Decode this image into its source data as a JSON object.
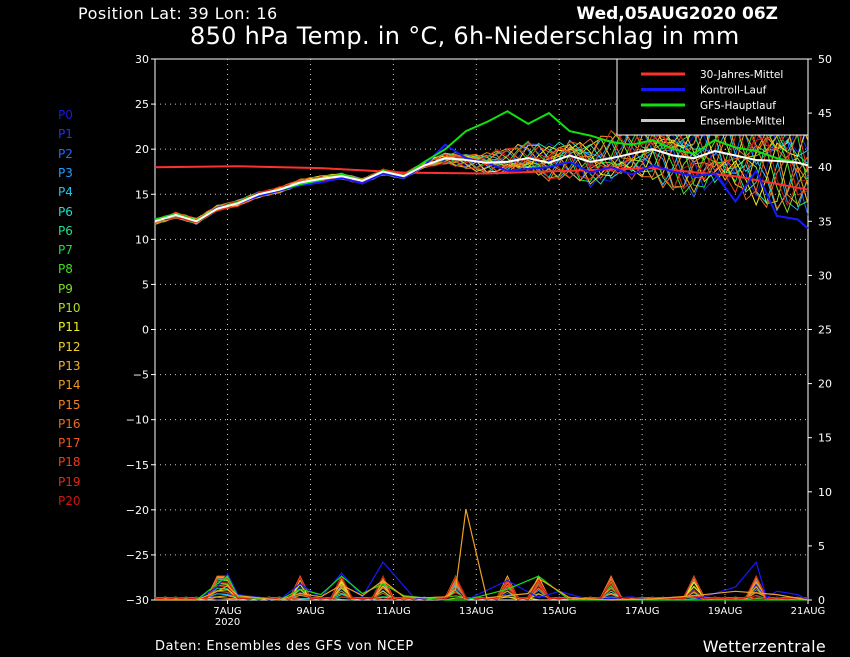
{
  "header": {
    "position": "Position   Lat: 39 Lon: 16",
    "run_time": "Wed,05AUG2020 06Z",
    "title": "850 hPa Temp. in °C, 6h-Niederschlag in mm"
  },
  "footer": {
    "source": "Daten: Ensembles des GFS von NCEP",
    "brand": "Wetterzentrale"
  },
  "members": [
    {
      "label": "P0",
      "color": "#1a1ad8"
    },
    {
      "label": "P1",
      "color": "#2030ff"
    },
    {
      "label": "P2",
      "color": "#1f6cff"
    },
    {
      "label": "P3",
      "color": "#1ea0ff"
    },
    {
      "label": "P4",
      "color": "#1ec8f0"
    },
    {
      "label": "P6",
      "color": "#19e0c8"
    },
    {
      "label": "P6",
      "color": "#1de08a"
    },
    {
      "label": "P7",
      "color": "#1de040"
    },
    {
      "label": "P8",
      "color": "#40e020"
    },
    {
      "label": "P9",
      "color": "#7ae020"
    },
    {
      "label": "P10",
      "color": "#b0e020"
    },
    {
      "label": "P11",
      "color": "#f0f020"
    },
    {
      "label": "P12",
      "color": "#f0d020"
    },
    {
      "label": "P13",
      "color": "#f0b020"
    },
    {
      "label": "P14",
      "color": "#f09820"
    },
    {
      "label": "P15",
      "color": "#f08020"
    },
    {
      "label": "P16",
      "color": "#f06a20"
    },
    {
      "label": "P17",
      "color": "#f05420"
    },
    {
      "label": "P18",
      "color": "#f03c20"
    },
    {
      "label": "P19",
      "color": "#e02818"
    },
    {
      "label": "P20",
      "color": "#c81810"
    }
  ],
  "chart_data": {
    "type": "line",
    "title": "850 hPa Temp. in °C, 6h-Niederschlag in mm",
    "x_axis": {
      "start": "2020-08-05 06Z",
      "end": "2020-08-21 00Z",
      "step": "6h",
      "tick_labels": [
        "7AUG",
        "9AUG",
        "11AUG",
        "13AUG",
        "15AUG",
        "17AUG",
        "19AUG",
        "21AUG"
      ],
      "tick_sublabel": "2020"
    },
    "y_left": {
      "ylim": [
        -30,
        30
      ],
      "step": 5,
      "ticks": [
        "30",
        "25",
        "20",
        "15",
        "10",
        "5",
        "0",
        "−5",
        "−10",
        "−15",
        "−20",
        "−25",
        "−30"
      ]
    },
    "y_right": {
      "ylim": [
        0,
        50
      ],
      "step": 5,
      "ticks": [
        "50",
        "45",
        "40",
        "35",
        "30",
        "25",
        "20",
        "15",
        "10",
        "5",
        "0"
      ]
    },
    "grid": true,
    "legend_position": "top-right",
    "legend": [
      {
        "name": "30-Jahres-Mittel",
        "color": "#ff3030"
      },
      {
        "name": "Kontroll-Lauf",
        "color": "#1818ff"
      },
      {
        "name": "GFS-Hauptlauf",
        "color": "#10e010"
      },
      {
        "name": "Ensemble-Mittel",
        "color": "#c8c8c8"
      }
    ],
    "series": [
      {
        "name": "30-Jahres-Mittel",
        "color": "#ff3030",
        "role": "temp",
        "x": [
          0,
          8,
          16,
          24,
          32,
          40,
          48,
          56,
          63
        ],
        "values": [
          18.0,
          18.1,
          17.9,
          17.4,
          17.3,
          17.6,
          17.9,
          17.0,
          15.5
        ]
      },
      {
        "name": "Kontroll-Lauf",
        "color": "#1818ff",
        "role": "temp",
        "x": [
          0,
          2,
          4,
          6,
          8,
          10,
          12,
          14,
          16,
          18,
          20,
          22,
          24,
          26,
          28,
          30,
          32,
          34,
          36,
          38,
          40,
          42,
          44,
          46,
          48,
          50,
          52,
          54,
          56,
          58,
          60,
          62,
          63
        ],
        "values": [
          12.0,
          12.7,
          12.0,
          13.5,
          14.0,
          14.8,
          15.4,
          16.0,
          16.3,
          16.8,
          16.2,
          17.3,
          16.8,
          18.2,
          20.5,
          19.0,
          18.5,
          17.6,
          17.8,
          18.0,
          18.6,
          17.4,
          18.0,
          17.2,
          18.2,
          17.5,
          17.0,
          17.3,
          14.2,
          17.6,
          12.6,
          12.2,
          11.2
        ]
      },
      {
        "name": "GFS-Hauptlauf",
        "color": "#10e010",
        "role": "temp",
        "x": [
          0,
          2,
          4,
          6,
          8,
          10,
          12,
          14,
          16,
          18,
          20,
          22,
          24,
          26,
          28,
          30,
          32,
          34,
          36,
          38,
          40,
          42,
          44,
          46,
          48,
          50,
          52,
          54,
          56,
          58,
          60,
          62,
          63
        ],
        "values": [
          12.2,
          12.8,
          12.1,
          13.4,
          14.1,
          15.0,
          15.5,
          16.1,
          16.6,
          17.2,
          16.5,
          17.6,
          17.0,
          18.6,
          20.0,
          22.0,
          23.0,
          24.2,
          22.8,
          24.0,
          22.0,
          21.5,
          20.8,
          20.5,
          21.0,
          20.0,
          19.5,
          21.0,
          20.2,
          19.8,
          19.0,
          18.5,
          18.2
        ]
      },
      {
        "name": "Ensemble-Mittel",
        "color": "#ffffff",
        "role": "temp",
        "x": [
          0,
          2,
          4,
          6,
          8,
          10,
          12,
          14,
          16,
          18,
          20,
          22,
          24,
          26,
          28,
          30,
          32,
          34,
          36,
          38,
          40,
          42,
          44,
          46,
          48,
          50,
          52,
          54,
          56,
          58,
          60,
          62,
          63
        ],
        "values": [
          12.0,
          12.7,
          12.0,
          13.4,
          14.0,
          15.0,
          15.5,
          16.3,
          16.7,
          17.0,
          16.5,
          17.5,
          17.0,
          18.2,
          19.0,
          18.8,
          18.5,
          18.6,
          19.0,
          18.5,
          19.3,
          18.6,
          19.0,
          19.5,
          20.0,
          19.3,
          19.0,
          19.8,
          19.3,
          18.8,
          18.7,
          18.5,
          18.2
        ]
      },
      {
        "name": "Kontroll-Lauf Niederschlag",
        "color": "#1818ff",
        "role": "precip",
        "x": [
          0,
          4,
          6,
          7,
          8,
          12,
          14,
          16,
          18,
          20,
          22,
          25,
          28,
          30,
          34,
          37,
          39,
          42,
          46,
          48,
          52,
          56,
          58,
          59,
          60,
          62,
          63
        ],
        "values": [
          0,
          0,
          1.2,
          2.4,
          0.5,
          0,
          1.5,
          0.2,
          2.5,
          0.3,
          3.5,
          0.2,
          0,
          0,
          1.8,
          0.2,
          0.8,
          0,
          0.3,
          0,
          0,
          1.2,
          3.5,
          0.2,
          0.8,
          0.5,
          0
        ]
      },
      {
        "name": "GFS-Hauptlauf Niederschlag",
        "color": "#10e010",
        "role": "precip",
        "x": [
          0,
          4,
          6,
          7,
          8,
          12,
          14,
          16,
          18,
          20,
          22,
          24,
          28,
          30,
          34,
          37,
          40,
          46,
          48,
          52,
          56,
          60,
          63
        ],
        "values": [
          0,
          0,
          1.5,
          2.2,
          0.3,
          0,
          1.0,
          0.5,
          2.2,
          0.6,
          1.5,
          0.4,
          0,
          0,
          1.0,
          2.2,
          0,
          0,
          0,
          0,
          0,
          0,
          0
        ]
      },
      {
        "name": "Spitze Niederschlag",
        "color": "#f0a020",
        "role": "precip",
        "x": [
          0,
          4,
          6,
          7,
          8,
          12,
          14,
          16,
          18,
          20,
          22,
          24,
          26,
          28,
          29,
          30,
          32,
          34,
          36,
          37,
          40,
          44,
          48,
          52,
          56,
          60,
          63
        ],
        "values": [
          0,
          0,
          0.8,
          1.3,
          0.4,
          0,
          0.6,
          0.3,
          1.4,
          0.4,
          1.8,
          0.3,
          0.2,
          0.3,
          1.0,
          8.4,
          0.2,
          0.4,
          0.6,
          2.0,
          0.2,
          0,
          0.1,
          0.4,
          0.8,
          0.5,
          0
        ]
      }
    ]
  }
}
